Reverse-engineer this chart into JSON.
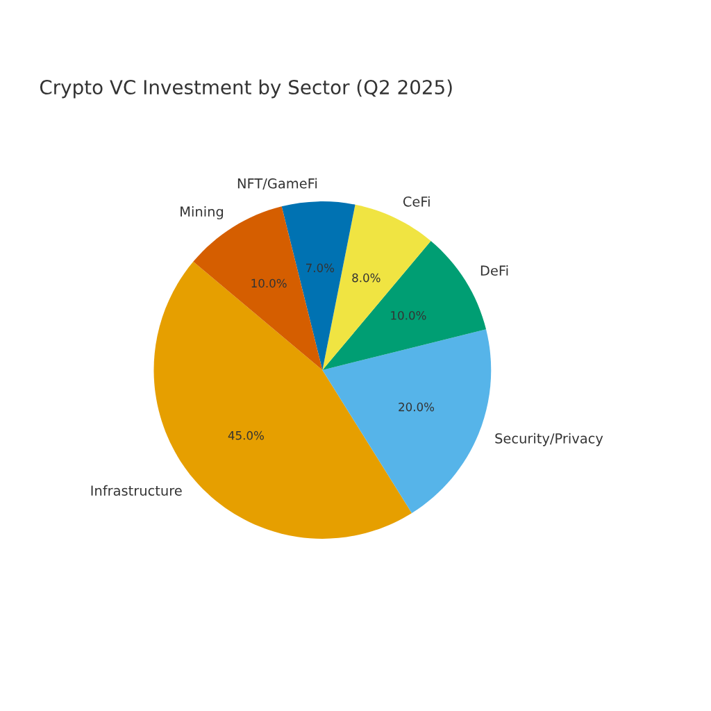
{
  "chart_data": {
    "type": "pie",
    "title": "Crypto VC Investment by Sector (Q2 2025)",
    "categories": [
      "Infrastructure",
      "Security/Privacy",
      "DeFi",
      "CeFi",
      "NFT/GameFi",
      "Mining"
    ],
    "values": [
      45,
      20,
      10,
      8,
      7,
      10
    ],
    "colors": [
      "#e69f00",
      "#56b4e9",
      "#009e73",
      "#f0e442",
      "#0072b2",
      "#d55e00"
    ],
    "value_labels": [
      "45.0%",
      "20.0%",
      "10.0%",
      "8.0%",
      "7.0%",
      "10.0%"
    ],
    "legend": false
  }
}
